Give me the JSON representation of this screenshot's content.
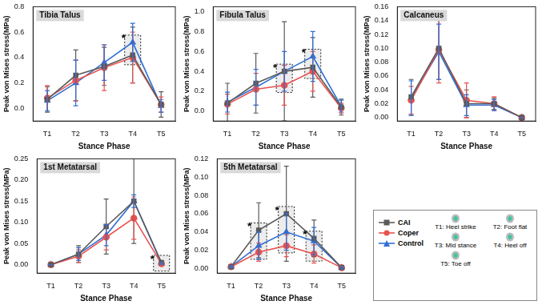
{
  "chart_data": [
    {
      "type": "line",
      "title": "Tibia Talus",
      "x_label": "Stance Phase",
      "y_label": "Peak von Mises stress(MPa)",
      "categories": [
        "T1",
        "T2",
        "T3",
        "T4",
        "T5"
      ],
      "ylim": [
        -0.1,
        0.8
      ],
      "yticks": [
        {
          "value": 0,
          "label": "0.0"
        },
        0.2,
        0.4,
        0.6,
        0.8
      ],
      "grid": false,
      "series": [
        {
          "name": "CAI",
          "color": "#5a5a5a",
          "marker": "square",
          "values": [
            0.07,
            0.26,
            0.33,
            0.42,
            0.03
          ],
          "errors": [
            0.1,
            0.2,
            0.15,
            0.22,
            0.1
          ]
        },
        {
          "name": "Coper",
          "color": "#e8534f",
          "marker": "circle",
          "values": [
            0.08,
            0.22,
            0.32,
            0.4,
            0.03
          ],
          "errors": [
            0.1,
            0.16,
            0.18,
            0.2,
            0.06
          ]
        },
        {
          "name": "Control",
          "color": "#2f6fd6",
          "marker": "triangle",
          "values": [
            0.06,
            0.2,
            0.36,
            0.52,
            0.02
          ],
          "errors": [
            0.08,
            0.18,
            0.14,
            0.15,
            0.05
          ]
        }
      ],
      "annotations": [
        {
          "text": "*",
          "category": "T4"
        }
      ]
    },
    {
      "type": "line",
      "title": "Fibula Talus",
      "x_label": "Stance Phase",
      "y_label": "Peak von Mises stress(MPa)",
      "categories": [
        "T1",
        "T2",
        "T3",
        "T4",
        "T5"
      ],
      "ylim": [
        -0.1,
        1.05
      ],
      "yticks": [
        {
          "value": 0,
          "label": "0.0"
        },
        0.2,
        0.4,
        0.6,
        0.8,
        {
          "value": 1,
          "label": "1.0"
        }
      ],
      "grid": false,
      "series": [
        {
          "name": "CAI",
          "color": "#5a5a5a",
          "marker": "square",
          "values": [
            0.08,
            0.28,
            0.4,
            0.44,
            0.04
          ],
          "errors": [
            0.2,
            0.3,
            0.5,
            0.3,
            0.08
          ]
        },
        {
          "name": "Coper",
          "color": "#e8534f",
          "marker": "circle",
          "values": [
            0.07,
            0.22,
            0.26,
            0.4,
            0.03
          ],
          "errors": [
            0.1,
            0.16,
            0.2,
            0.2,
            0.05
          ]
        },
        {
          "name": "Control",
          "color": "#2f6fd6",
          "marker": "triangle",
          "values": [
            0.09,
            0.24,
            0.4,
            0.55,
            0.05
          ],
          "errors": [
            0.1,
            0.18,
            0.2,
            0.25,
            0.06
          ]
        }
      ],
      "annotations": [
        {
          "text": "*",
          "category": "T3"
        },
        {
          "text": "*",
          "category": "T4"
        }
      ]
    },
    {
      "type": "line",
      "title": "Calcaneus",
      "x_label": "Stance Phase",
      "y_label": "Peak von Mises stress(MPa)",
      "categories": [
        "T1",
        "T2",
        "T3",
        "T4",
        "T5"
      ],
      "ylim": [
        -0.005,
        0.16
      ],
      "yticks": [
        {
          "value": 0,
          "label": "0.00"
        },
        {
          "value": 0.02,
          "label": "0.02"
        },
        {
          "value": 0.04,
          "label": "0.04"
        },
        {
          "value": 0.06,
          "label": "0.06"
        },
        {
          "value": 0.08,
          "label": "0.08"
        },
        {
          "value": 0.1,
          "label": "0.10"
        },
        {
          "value": 0.12,
          "label": "0.12"
        },
        {
          "value": 0.14,
          "label": "0.14"
        },
        {
          "value": 0.16,
          "label": "0.16"
        }
      ],
      "grid": false,
      "series": [
        {
          "name": "CAI",
          "color": "#5a5a5a",
          "marker": "square",
          "values": [
            0.03,
            0.1,
            0.02,
            0.02,
            0
          ],
          "errors": [
            0.025,
            0.045,
            0.02,
            0.008,
            0
          ]
        },
        {
          "name": "Coper",
          "color": "#e8534f",
          "marker": "circle",
          "values": [
            0.025,
            0.098,
            0.025,
            0.02,
            0
          ],
          "errors": [
            0.02,
            0.048,
            0.025,
            0.01,
            0
          ]
        },
        {
          "name": "Control",
          "color": "#2f6fd6",
          "marker": "triangle",
          "values": [
            0.028,
            0.095,
            0.018,
            0.018,
            0
          ],
          "errors": [
            0.025,
            0.04,
            0.015,
            0.008,
            0
          ]
        }
      ],
      "annotations": []
    },
    {
      "type": "line",
      "title": "1st Metatarsal",
      "x_label": "Stance Phase",
      "y_label": "Peak von Mises stress(MPa)",
      "categories": [
        "T1",
        "T2",
        "T3",
        "T4",
        "T5"
      ],
      "ylim": [
        -0.02,
        0.25
      ],
      "yticks": [
        {
          "value": 0,
          "label": "0.00"
        },
        0.05,
        {
          "value": 0.1,
          "label": "0.10"
        },
        0.15,
        {
          "value": 0.2,
          "label": "0.20"
        },
        0.25
      ],
      "grid": false,
      "series": [
        {
          "name": "CAI",
          "color": "#5a5a5a",
          "marker": "square",
          "values": [
            0,
            0.025,
            0.09,
            0.15,
            0.005
          ],
          "errors": [
            0,
            0.02,
            0.065,
            0.1,
            0.003
          ]
        },
        {
          "name": "Coper",
          "color": "#e8534f",
          "marker": "circle",
          "values": [
            0,
            0.02,
            0.065,
            0.11,
            0.002
          ],
          "errors": [
            0,
            0.015,
            0.03,
            0.05,
            0.002
          ]
        },
        {
          "name": "Control",
          "color": "#2f6fd6",
          "marker": "triangle",
          "values": [
            0,
            0.025,
            0.07,
            0.15,
            0.003
          ],
          "errors": [
            0,
            0.015,
            0.025,
            0.015,
            0.002
          ]
        }
      ],
      "annotations": [
        {
          "text": "*",
          "category": "T5"
        }
      ]
    },
    {
      "type": "line",
      "title": "5th Metatarsal",
      "x_label": "Stance Phase",
      "y_label": "Peak von Mises stress(MPa)",
      "categories": [
        "T1",
        "T2",
        "T3",
        "T4",
        "T5"
      ],
      "ylim": [
        -0.005,
        0.12
      ],
      "yticks": [
        {
          "value": 0,
          "label": "0.00"
        },
        {
          "value": 0.02,
          "label": "0.02"
        },
        {
          "value": 0.04,
          "label": "0.04"
        },
        {
          "value": 0.06,
          "label": "0.06"
        },
        {
          "value": 0.08,
          "label": "0.08"
        },
        {
          "value": 0.1,
          "label": "0.10"
        },
        {
          "value": 0.12,
          "label": "0.12"
        }
      ],
      "grid": false,
      "series": [
        {
          "name": "CAI",
          "color": "#5a5a5a",
          "marker": "square",
          "values": [
            0.002,
            0.042,
            0.06,
            0.033,
            0.001
          ],
          "errors": [
            0.001,
            0.03,
            0.052,
            0.02,
            0.001
          ]
        },
        {
          "name": "Coper",
          "color": "#e8534f",
          "marker": "circle",
          "values": [
            0.002,
            0.018,
            0.025,
            0.016,
            0.001
          ],
          "errors": [
            0.001,
            0.01,
            0.012,
            0.01,
            0.001
          ]
        },
        {
          "name": "Control",
          "color": "#2f6fd6",
          "marker": "triangle",
          "values": [
            0.002,
            0.025,
            0.04,
            0.03,
            0.001
          ],
          "errors": [
            0.001,
            0.015,
            0.02,
            0.015,
            0.001
          ]
        }
      ],
      "annotations": [
        {
          "text": "*",
          "category": "T2"
        },
        {
          "text": "*",
          "category": "T3"
        },
        {
          "text": "*",
          "category": "T4"
        }
      ]
    }
  ],
  "legend_panel": {
    "phases": [
      "T1: Heel strike",
      "T2: Foot flat",
      "T3: Mid stance",
      "T4: Heel off",
      "T5: Toe off"
    ]
  }
}
